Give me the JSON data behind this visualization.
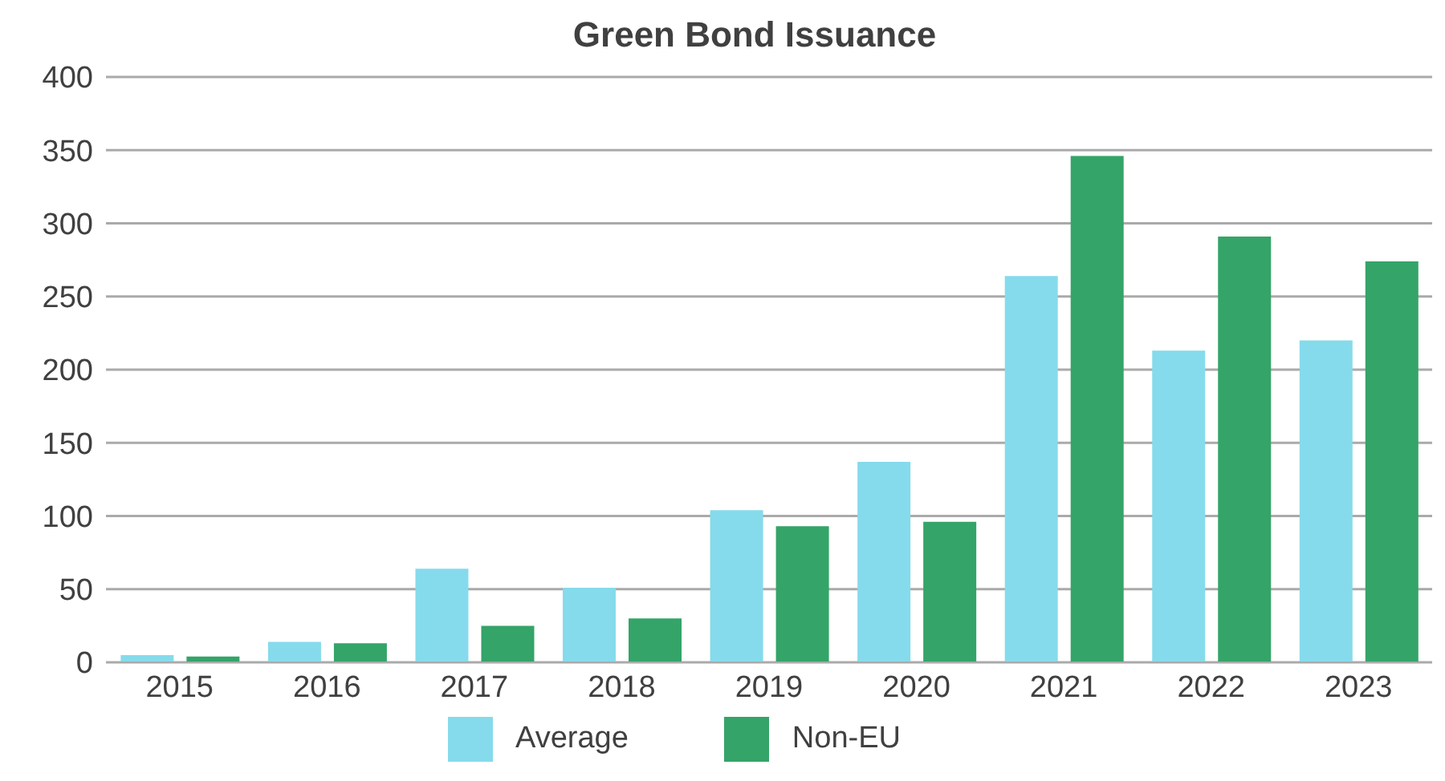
{
  "chart_data": {
    "type": "bar",
    "title": "Green Bond Issuance",
    "categories": [
      "2015",
      "2016",
      "2017",
      "2018",
      "2019",
      "2020",
      "2021",
      "2022",
      "2023"
    ],
    "series": [
      {
        "name": "Average",
        "color": "#85dbeb",
        "values": [
          5,
          14,
          64,
          51,
          104,
          137,
          264,
          213,
          220
        ]
      },
      {
        "name": "Non-EU",
        "color": "#34a468",
        "values": [
          4,
          13,
          25,
          30,
          93,
          96,
          346,
          291,
          274
        ]
      }
    ],
    "ylim": [
      0,
      400
    ],
    "yticks": [
      0,
      50,
      100,
      150,
      200,
      250,
      300,
      350,
      400
    ],
    "grid": "y",
    "legend": "bottom"
  }
}
